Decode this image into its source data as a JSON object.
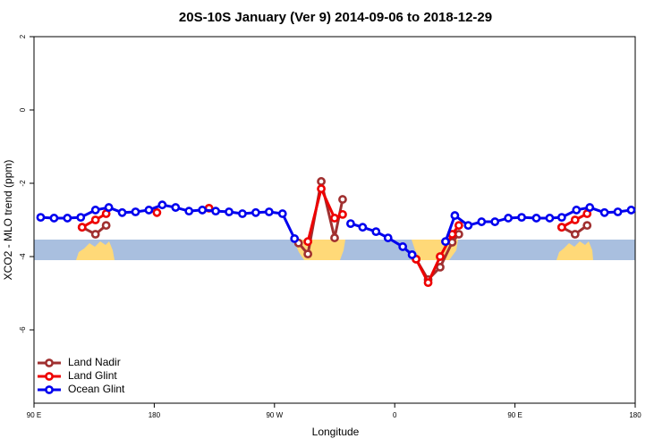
{
  "chart_data": {
    "type": "line",
    "title": "20S-10S January (Ver 9)   2014-09-06 to 2018-12-29",
    "x_label": "Longitude",
    "y_label": "XCO2 - MLO trend (ppm)",
    "xlim": [
      90,
      540
    ],
    "ylim": [
      -8,
      2
    ],
    "xticks": [
      {
        "value": 90,
        "label": "90 E"
      },
      180,
      {
        "value": 270,
        "label": "90 W"
      },
      {
        "value": 360,
        "label": "0"
      },
      {
        "value": 450,
        "label": "90 E"
      },
      {
        "value": 540,
        "label": "180"
      }
    ],
    "yticks": [
      2,
      0,
      -2,
      -4,
      -6
    ],
    "legend": "bottomleft",
    "series": [
      {
        "name": "Land Nadir",
        "color": "#a03030",
        "x": [
          126,
          136,
          144,
          null,
          288,
          295,
          305,
          315,
          321,
          null,
          376,
          385,
          394,
          403,
          408,
          null,
          485,
          495,
          504
        ],
        "values": [
          -3.2,
          -3.39,
          -3.15,
          null,
          -3.63,
          -3.93,
          -1.95,
          -3.49,
          -2.44,
          null,
          -4.07,
          -4.63,
          -4.29,
          -3.61,
          -3.39,
          null,
          -3.2,
          -3.39,
          -3.15
        ]
      },
      {
        "name": "Land Glint",
        "color": "#ee0000",
        "x": [
          126,
          136,
          144,
          null,
          182,
          null,
          221,
          null,
          295,
          305,
          315,
          321,
          null,
          376,
          385,
          394,
          403,
          408,
          null,
          485,
          495,
          504
        ],
        "values": [
          -3.2,
          -3.0,
          -2.83,
          null,
          -2.8,
          null,
          -2.68,
          null,
          -3.59,
          -2.15,
          -2.95,
          -2.85,
          null,
          -4.07,
          -4.71,
          -4.0,
          -3.39,
          -3.15,
          null,
          -3.2,
          -3.0,
          -2.83
        ]
      },
      {
        "name": "Ocean Glint",
        "color": "#0000ee",
        "x": [
          95,
          105,
          115,
          125,
          136,
          146,
          156,
          166,
          176,
          186,
          196,
          206,
          216,
          226,
          236,
          246,
          256,
          266,
          276,
          285,
          null,
          327,
          336,
          346,
          355,
          366,
          373,
          null,
          398,
          405,
          415,
          425,
          435,
          445,
          455,
          466,
          476,
          485,
          496,
          506,
          517,
          527,
          537
        ],
        "values": [
          -2.93,
          -2.95,
          -2.95,
          -2.93,
          -2.73,
          -2.66,
          -2.8,
          -2.78,
          -2.73,
          -2.59,
          -2.66,
          -2.76,
          -2.73,
          -2.76,
          -2.78,
          -2.83,
          -2.8,
          -2.78,
          -2.83,
          -3.51,
          null,
          -3.1,
          -3.2,
          -3.32,
          -3.49,
          -3.73,
          -3.95,
          null,
          -3.59,
          -2.88,
          -3.15,
          -3.05,
          -3.05,
          -2.95,
          -2.93,
          -2.95,
          -2.95,
          -2.93,
          -2.73,
          -2.66,
          -2.8,
          -2.78,
          -2.73
        ]
      }
    ]
  }
}
